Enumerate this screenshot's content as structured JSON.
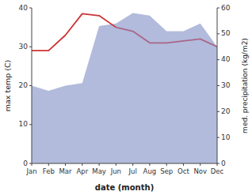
{
  "chart_data": {
    "type": "line",
    "categories": [
      "Jan",
      "Feb",
      "Mar",
      "Apr",
      "May",
      "Jun",
      "Jul",
      "Aug",
      "Sep",
      "Oct",
      "Nov",
      "Dec"
    ],
    "series": [
      {
        "type": "area",
        "axis": "y2",
        "color": "#aab4d8",
        "values": [
          30,
          28,
          30,
          31,
          53,
          54,
          58,
          57,
          51,
          51,
          54,
          45
        ]
      },
      {
        "type": "line",
        "color": "#cc3333",
        "values": [
          29,
          29,
          33,
          38.5,
          38,
          35,
          null,
          null,
          null,
          null,
          null,
          null
        ]
      },
      {
        "type": "line",
        "color": "#aa6688",
        "values": [
          null,
          null,
          null,
          null,
          null,
          35,
          34,
          31,
          31,
          31.5,
          32,
          30
        ]
      }
    ],
    "xlabel": "date (month)",
    "ylabel": "max temp (C)",
    "y2label": "med. precipitation (kg/m2)",
    "ylim": [
      0,
      40
    ],
    "yticks": [
      0,
      10,
      20,
      30,
      40
    ],
    "y2lim": [
      0,
      60
    ],
    "y2ticks": [
      0,
      10,
      20,
      30,
      40,
      50,
      60
    ],
    "grid": false
  }
}
